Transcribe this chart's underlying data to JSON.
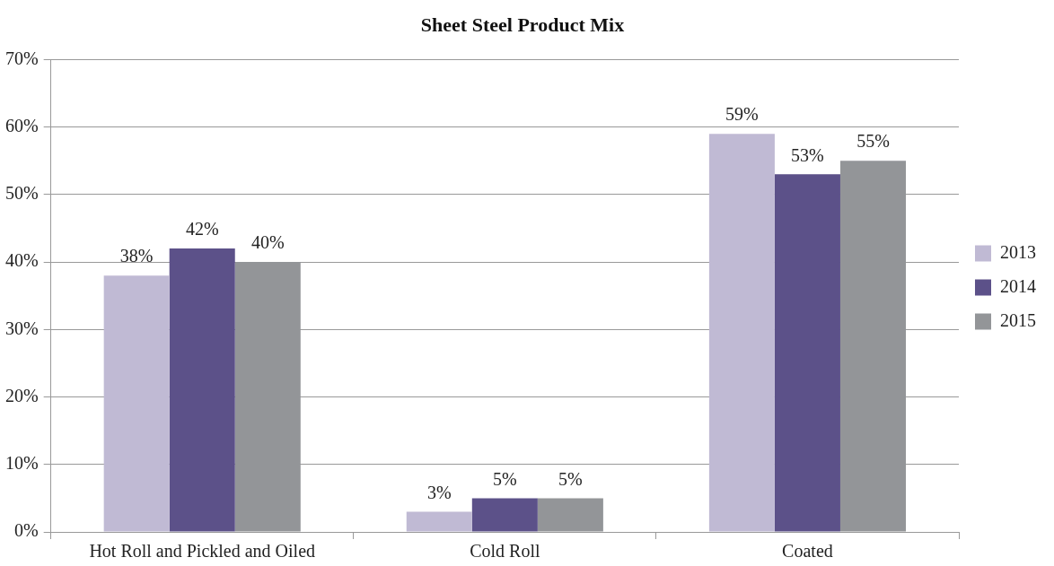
{
  "chart_data": {
    "type": "bar",
    "title": "Sheet Steel Product Mix",
    "categories": [
      "Hot Roll and Pickled and Oiled",
      "Cold Roll",
      "Coated"
    ],
    "series": [
      {
        "name": "2013",
        "color": "#c0bad4",
        "values": [
          38,
          3,
          59
        ],
        "value_labels": [
          "38%",
          "3%",
          "59%"
        ]
      },
      {
        "name": "2014",
        "color": "#5c5189",
        "values": [
          42,
          5,
          53
        ],
        "value_labels": [
          "42%",
          "5%",
          "53%"
        ]
      },
      {
        "name": "2015",
        "color": "#939598",
        "values": [
          40,
          5,
          55
        ],
        "value_labels": [
          "40%",
          "5%",
          "55%"
        ]
      }
    ],
    "ylim": [
      0,
      70
    ],
    "yticks": [
      {
        "value": 0,
        "label": "0%"
      },
      {
        "value": 10,
        "label": "10%"
      },
      {
        "value": 20,
        "label": "20%"
      },
      {
        "value": 30,
        "label": "30%"
      },
      {
        "value": 40,
        "label": "40%"
      },
      {
        "value": 50,
        "label": "50%"
      },
      {
        "value": 60,
        "label": "60%"
      },
      {
        "value": 70,
        "label": "70%"
      }
    ],
    "grid": "y",
    "legend": "right"
  }
}
